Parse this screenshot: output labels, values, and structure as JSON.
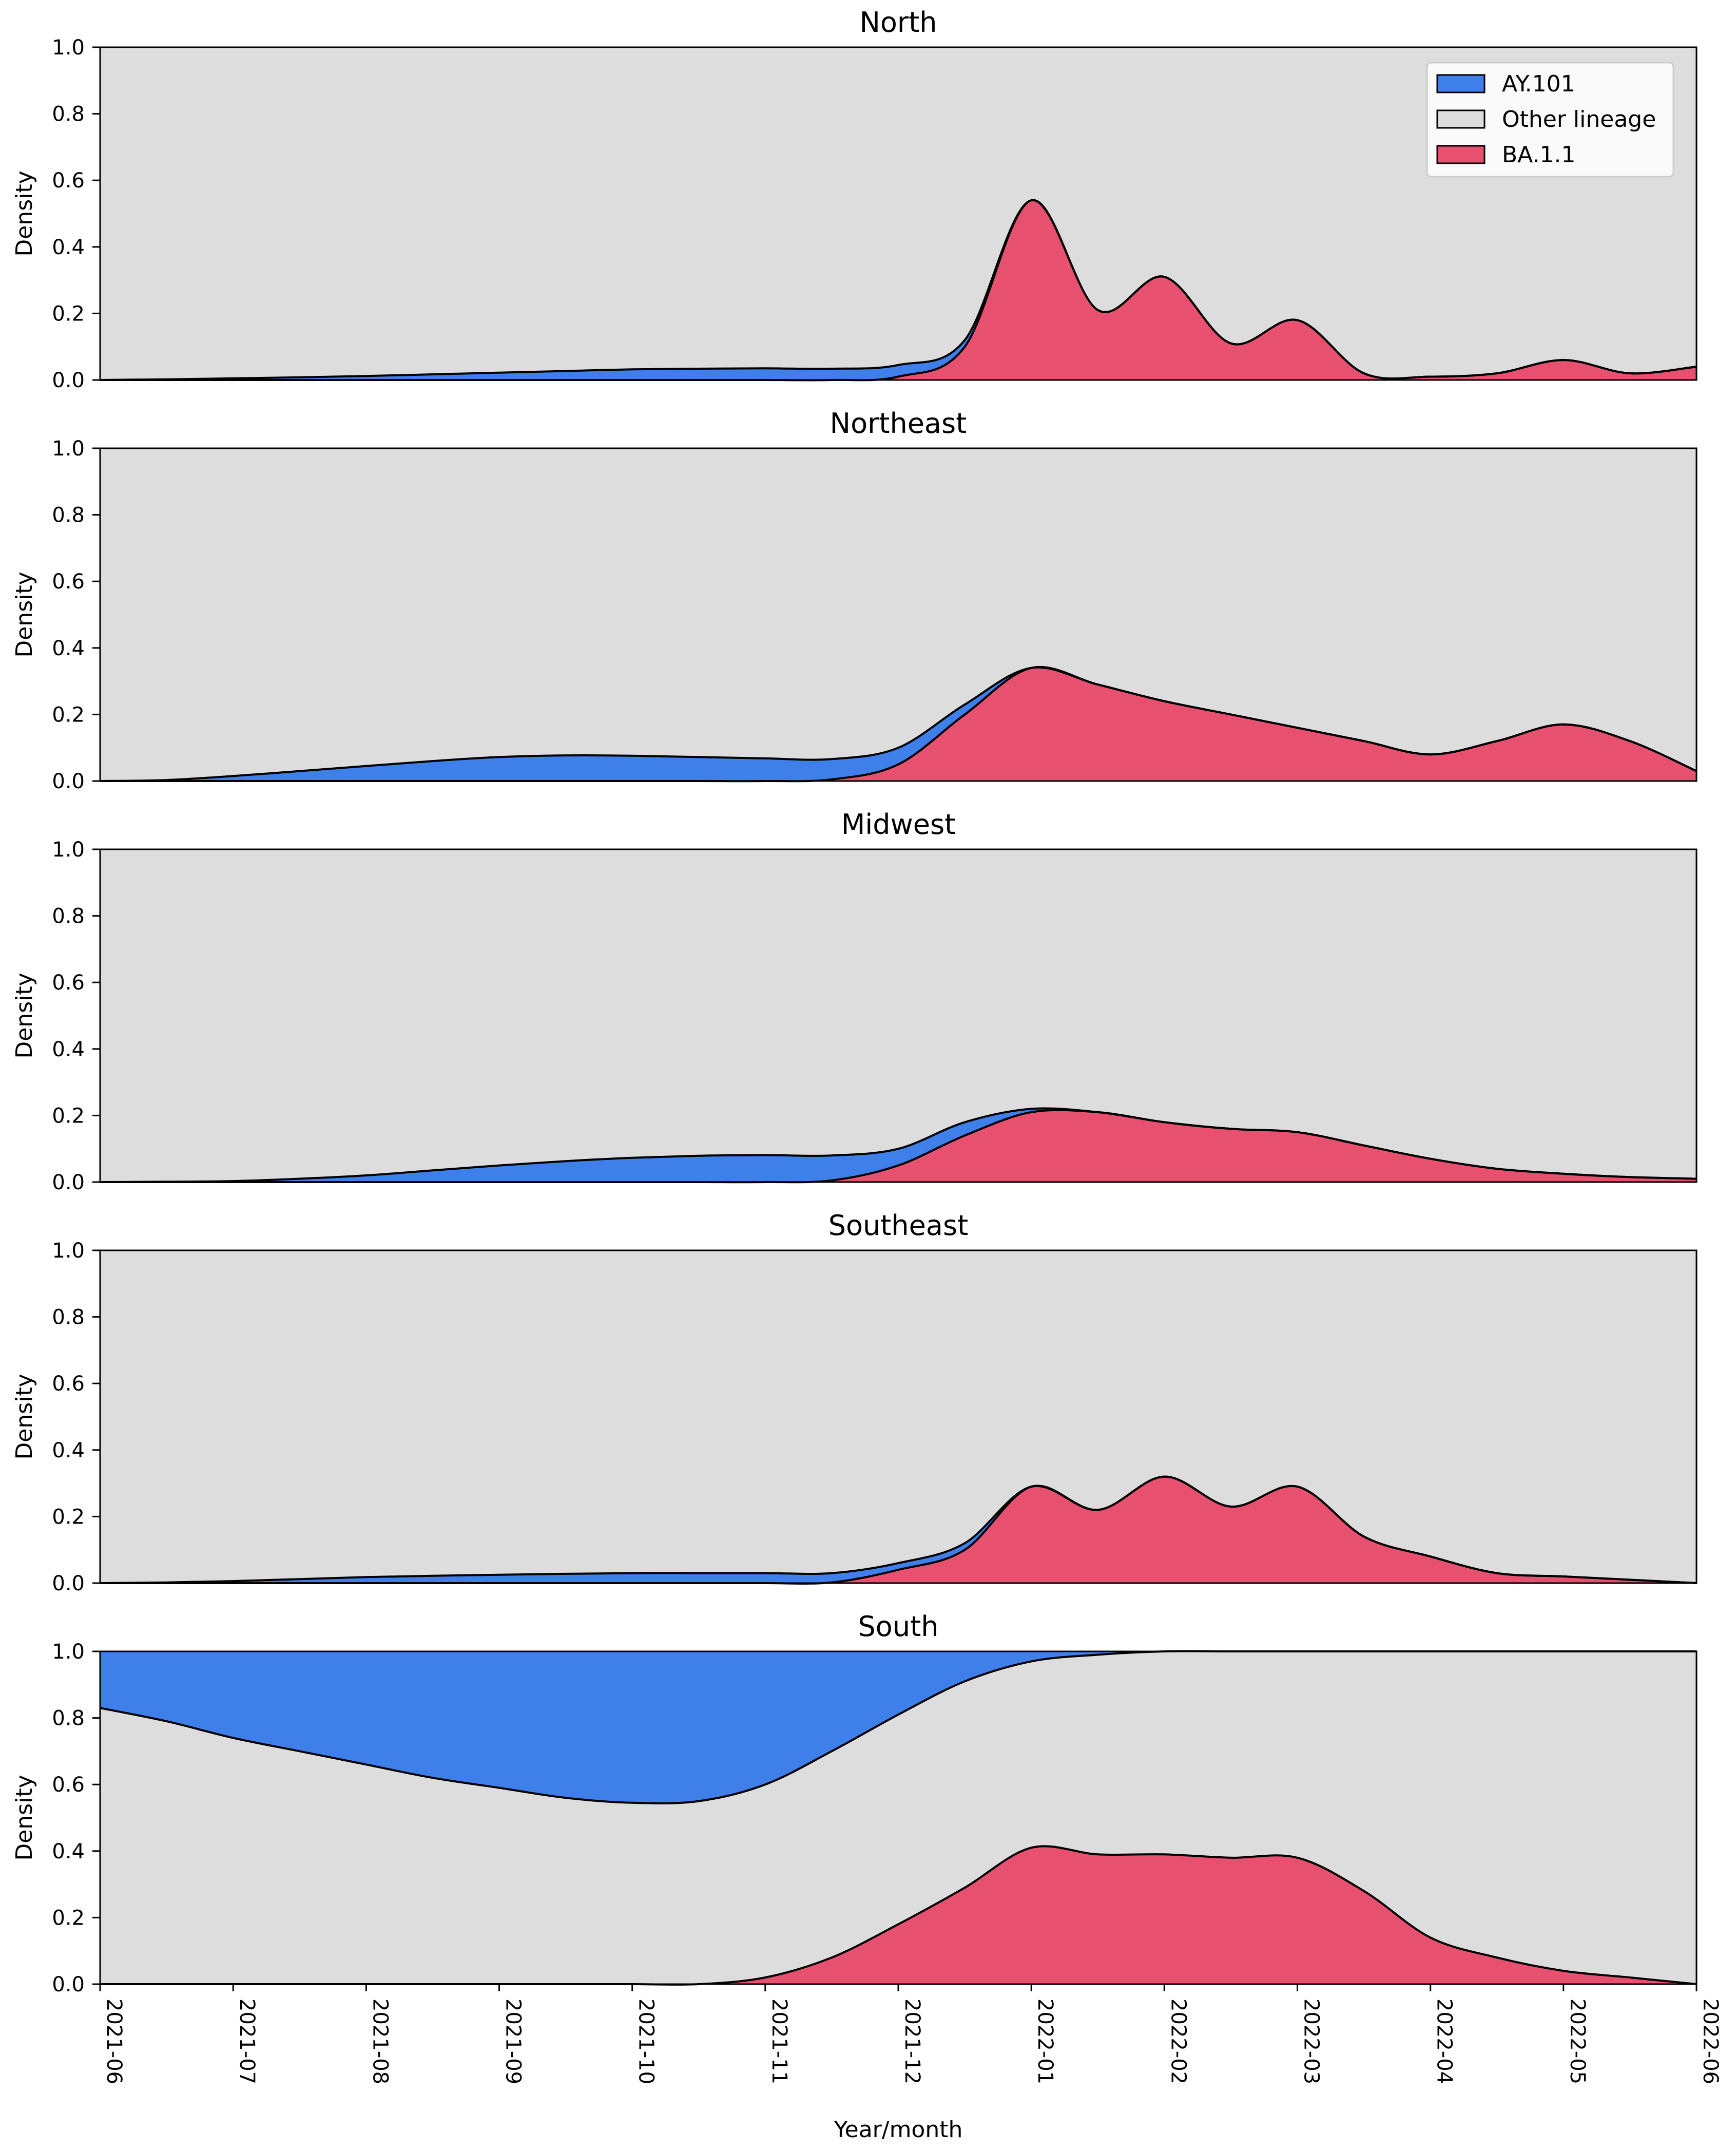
{
  "chart_data": {
    "type": "area",
    "xlabel": "Year/month",
    "ylabel": "Density",
    "ylim": [
      0,
      1.0
    ],
    "xlim": [
      "2021-06",
      "2022-06"
    ],
    "x_ticks": [
      "2021-06",
      "2021-07",
      "2021-08",
      "2021-09",
      "2021-10",
      "2021-11",
      "2021-12",
      "2022-01",
      "2022-02",
      "2022-03",
      "2022-04",
      "2022-05",
      "2022-06"
    ],
    "y_ticks": [
      "0.0",
      "0.2",
      "0.4",
      "0.6",
      "0.8",
      "1.0"
    ],
    "legend": {
      "location": "top-right",
      "entries": [
        {
          "label": "AY.101",
          "color": "#3f7fea"
        },
        {
          "label": "Other lineage",
          "color": "#dddddd"
        },
        {
          "label": "BA.1.1",
          "color": "#e8506f"
        }
      ]
    },
    "colors": {
      "ay101": "#3f7fea",
      "other": "#dddddd",
      "ba11": "#e8506f"
    },
    "x": [
      0,
      0.5,
      1,
      1.5,
      2,
      2.5,
      3,
      3.5,
      4,
      4.5,
      5,
      5.5,
      6,
      6.5,
      7,
      7.5,
      8,
      8.5,
      9,
      9.5,
      10,
      10.5,
      11,
      11.5,
      12
    ],
    "panels": [
      {
        "title": "North",
        "ba11_top": [
          0,
          0,
          0,
          0,
          0,
          0,
          0,
          0,
          0,
          0,
          0,
          0,
          0.01,
          0.1,
          0.54,
          0.21,
          0.31,
          0.11,
          0.18,
          0.02,
          0.01,
          0.02,
          0.06,
          0.02,
          0.04
        ],
        "ay101_top": [
          0,
          0.002,
          0.005,
          0.008,
          0.012,
          0.017,
          0.022,
          0.027,
          0.032,
          0.034,
          0.035,
          0.034,
          0.045,
          0.12,
          0.54,
          0.21,
          0.31,
          0.11,
          0.18,
          0.02,
          0.01,
          0.02,
          0.06,
          0.02,
          0.04
        ]
      },
      {
        "title": "Northeast",
        "ba11_top": [
          0,
          0,
          0,
          0,
          0,
          0,
          0,
          0,
          0,
          0,
          0,
          0.005,
          0.05,
          0.2,
          0.34,
          0.29,
          0.24,
          0.2,
          0.16,
          0.12,
          0.08,
          0.12,
          0.17,
          0.12,
          0.03
        ],
        "ay101_top": [
          0,
          0.003,
          0.015,
          0.03,
          0.045,
          0.06,
          0.072,
          0.077,
          0.076,
          0.072,
          0.068,
          0.066,
          0.1,
          0.23,
          0.34,
          0.29,
          0.24,
          0.2,
          0.16,
          0.12,
          0.08,
          0.12,
          0.17,
          0.12,
          0.03
        ]
      },
      {
        "title": "Midwest",
        "ba11_top": [
          0,
          0,
          0,
          0,
          0,
          0,
          0,
          0,
          0,
          0,
          0,
          0.005,
          0.05,
          0.14,
          0.21,
          0.21,
          0.18,
          0.16,
          0.15,
          0.11,
          0.07,
          0.04,
          0.025,
          0.015,
          0.01
        ],
        "ay101_top": [
          0,
          0.001,
          0.003,
          0.01,
          0.02,
          0.035,
          0.05,
          0.063,
          0.073,
          0.079,
          0.081,
          0.08,
          0.1,
          0.18,
          0.22,
          0.21,
          0.18,
          0.16,
          0.15,
          0.11,
          0.07,
          0.04,
          0.025,
          0.015,
          0.01
        ]
      },
      {
        "title": "Southeast",
        "ba11_top": [
          0,
          0,
          0,
          0,
          0,
          0,
          0,
          0,
          0,
          0,
          0,
          0.002,
          0.04,
          0.1,
          0.29,
          0.22,
          0.32,
          0.23,
          0.29,
          0.14,
          0.08,
          0.03,
          0.02,
          0.01,
          0
        ],
        "ay101_top": [
          0,
          0.002,
          0.006,
          0.012,
          0.018,
          0.022,
          0.025,
          0.028,
          0.03,
          0.03,
          0.03,
          0.03,
          0.06,
          0.12,
          0.29,
          0.22,
          0.32,
          0.23,
          0.29,
          0.14,
          0.08,
          0.03,
          0.02,
          0.01,
          0
        ]
      },
      {
        "title": "South",
        "ba11_top": [
          0,
          0,
          0,
          0,
          0,
          0,
          0,
          0,
          0,
          0,
          0.02,
          0.08,
          0.18,
          0.29,
          0.41,
          0.39,
          0.39,
          0.38,
          0.38,
          0.28,
          0.14,
          0.08,
          0.04,
          0.02,
          0
        ],
        "other_top": [
          0.83,
          0.79,
          0.74,
          0.7,
          0.66,
          0.62,
          0.59,
          0.56,
          0.545,
          0.55,
          0.6,
          0.7,
          0.81,
          0.91,
          0.97,
          0.99,
          1.0,
          1.0,
          1.0,
          1.0,
          1.0,
          1.0,
          1.0,
          1.0,
          1.0
        ]
      }
    ]
  }
}
